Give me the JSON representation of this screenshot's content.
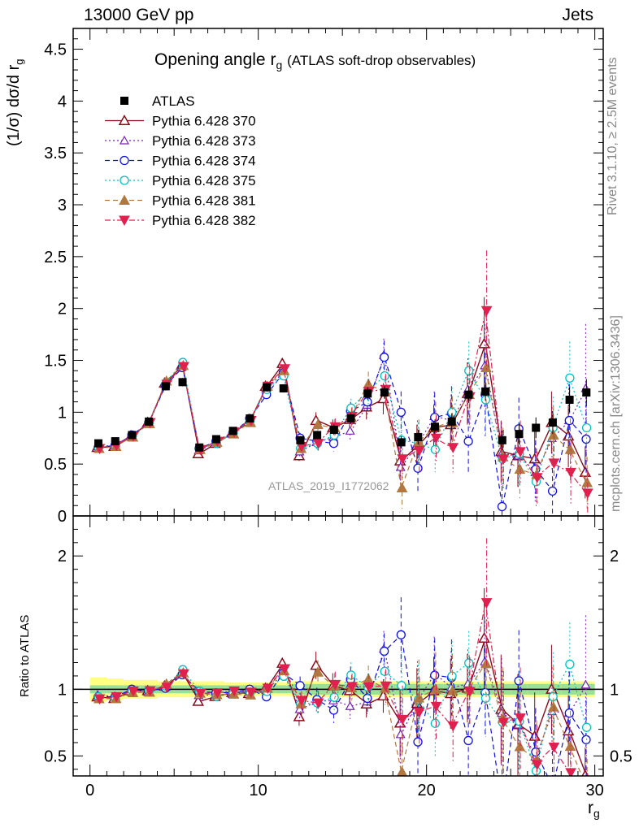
{
  "header": {
    "left": "13000 GeV pp",
    "right": "Jets"
  },
  "side_labels": {
    "rivet": "Rivet 3.1.10, ≥ 2.5M events",
    "mcplots": "mcplots.cern.ch [arXiv:1306.3436]"
  },
  "watermark": "ATLAS_2019_I1772062",
  "chart_data": [
    {
      "type": "scatter",
      "title": "Opening angle r",
      "title_subscript": "g",
      "title_note": "(ATLAS soft-drop observables)",
      "ylabel": "(1/σ) dσ/d r",
      "ylabel_subscript": "g",
      "xlabel": "r",
      "xlabel_subscript": "g",
      "xlim": [
        -1,
        30.5
      ],
      "ylim": [
        0,
        4.7
      ],
      "yticks": [
        "0",
        "0.5",
        "1",
        "1.5",
        "2",
        "2.5",
        "3",
        "3.5",
        "4",
        "4.5"
      ],
      "legend_position": "top-left",
      "x": [
        0.5,
        1.5,
        2.5,
        3.5,
        4.5,
        5.5,
        6.5,
        7.5,
        8.5,
        9.5,
        10.5,
        11.5,
        12.5,
        13.5,
        14.5,
        15.5,
        16.5,
        17.5,
        18.5,
        19.5,
        20.5,
        21.5,
        22.5,
        23.5,
        24.5,
        25.5,
        26.5,
        27.5,
        28.5,
        29.5
      ],
      "data": {
        "name": "ATLAS",
        "values": [
          0.7,
          0.72,
          0.78,
          0.91,
          1.25,
          1.29,
          0.66,
          0.74,
          0.82,
          0.94,
          1.24,
          1.23,
          0.73,
          0.78,
          0.83,
          0.94,
          1.18,
          1.19,
          0.71,
          0.76,
          0.86,
          0.91,
          1.17,
          1.2,
          0.73,
          0.79,
          0.85,
          0.9,
          1.12,
          1.19
        ],
        "errors": [
          0.03,
          0.03,
          0.03,
          0.03,
          0.04,
          0.04,
          0.03,
          0.03,
          0.03,
          0.03,
          0.04,
          0.04,
          0.04,
          0.04,
          0.05,
          0.05,
          0.06,
          0.06,
          0.06,
          0.07,
          0.07,
          0.08,
          0.08,
          0.09,
          0.09,
          0.1,
          0.1,
          0.11,
          0.12,
          0.13
        ]
      },
      "series": [
        {
          "name": "Pythia 6.428 370",
          "color": "#8b0a1a",
          "marker": "triangle-open",
          "dash": "solid",
          "values": [
            0.66,
            0.67,
            0.77,
            0.9,
            1.28,
            1.45,
            0.6,
            0.7,
            0.8,
            0.91,
            1.25,
            1.47,
            0.58,
            0.92,
            0.85,
            0.93,
            1.05,
            1.13,
            0.53,
            0.68,
            0.85,
            0.88,
            1.18,
            1.66,
            0.62,
            0.58,
            0.55,
            0.9,
            0.77,
            0.42
          ],
          "errors": [
            0.02,
            0.02,
            0.02,
            0.02,
            0.03,
            0.03,
            0.02,
            0.02,
            0.02,
            0.02,
            0.03,
            0.04,
            0.05,
            0.08,
            0.08,
            0.09,
            0.12,
            0.15,
            0.18,
            0.2,
            0.22,
            0.24,
            0.3,
            0.45,
            0.3,
            0.3,
            0.28,
            0.3,
            0.3,
            0.25
          ]
        },
        {
          "name": "Pythia 6.428 373",
          "color": "#7a1fb8",
          "marker": "triangle-open-small",
          "dash": "dotted",
          "values": [
            0.67,
            0.68,
            0.78,
            0.89,
            1.27,
            1.44,
            0.63,
            0.71,
            0.79,
            0.92,
            1.23,
            1.38,
            0.62,
            0.71,
            0.76,
            0.82,
            1.07,
            1.55,
            0.47,
            0.7,
            0.96,
            0.92,
            1.22,
            1.45,
            0.6,
            0.58,
            0.42,
            0.75,
            0.92,
            1.23
          ],
          "errors": [
            0.02,
            0.02,
            0.02,
            0.02,
            0.03,
            0.03,
            0.02,
            0.02,
            0.02,
            0.02,
            0.03,
            0.04,
            0.05,
            0.07,
            0.08,
            0.09,
            0.12,
            0.16,
            0.2,
            0.22,
            0.24,
            0.25,
            0.3,
            0.4,
            0.3,
            0.3,
            0.28,
            0.3,
            0.35,
            0.62
          ]
        },
        {
          "name": "Pythia 6.428 374",
          "color": "#1010e0",
          "marker": "circle-open",
          "dash": "dashed",
          "values": [
            0.66,
            0.68,
            0.78,
            0.9,
            1.26,
            1.43,
            0.65,
            0.72,
            0.8,
            0.94,
            1.17,
            1.38,
            0.75,
            0.72,
            0.7,
            1.01,
            1.1,
            1.53,
            1.0,
            0.46,
            0.95,
            0.99,
            0.72,
            1.17,
            0.09,
            0.84,
            0.45,
            0.24,
            0.92,
            0.74
          ],
          "errors": [
            0.02,
            0.02,
            0.02,
            0.02,
            0.03,
            0.03,
            0.02,
            0.02,
            0.02,
            0.02,
            0.03,
            0.04,
            0.05,
            0.07,
            0.08,
            0.09,
            0.12,
            0.16,
            0.2,
            0.22,
            0.24,
            0.26,
            0.3,
            0.4,
            0.2,
            0.3,
            0.28,
            0.3,
            0.35,
            0.35
          ]
        },
        {
          "name": "Pythia 6.428 375",
          "color": "#00c0c0",
          "marker": "circle-open-cyan",
          "dash": "dotted",
          "values": [
            0.66,
            0.67,
            0.77,
            0.9,
            1.28,
            1.48,
            0.65,
            0.7,
            0.8,
            0.92,
            1.22,
            1.35,
            0.65,
            0.7,
            0.78,
            1.04,
            1.2,
            1.35,
            0.73,
            0.7,
            0.64,
            1.0,
            1.4,
            1.12,
            0.55,
            0.6,
            0.33,
            0.85,
            1.33,
            0.85
          ],
          "errors": [
            0.02,
            0.02,
            0.02,
            0.02,
            0.03,
            0.03,
            0.02,
            0.02,
            0.02,
            0.02,
            0.03,
            0.04,
            0.05,
            0.07,
            0.08,
            0.09,
            0.12,
            0.15,
            0.18,
            0.2,
            0.22,
            0.24,
            0.28,
            0.35,
            0.28,
            0.3,
            0.25,
            0.3,
            0.35,
            0.3
          ]
        },
        {
          "name": "Pythia 6.428 381",
          "color": "#b07840",
          "marker": "triangle-filled",
          "dash": "dashed",
          "values": [
            0.65,
            0.67,
            0.76,
            0.89,
            1.3,
            1.45,
            0.64,
            0.71,
            0.79,
            0.9,
            1.25,
            1.4,
            0.65,
            0.88,
            0.85,
            0.95,
            1.27,
            1.2,
            0.27,
            0.71,
            0.86,
            0.9,
            1.17,
            1.43,
            0.57,
            0.45,
            0.4,
            0.78,
            0.64,
            0.32
          ],
          "errors": [
            0.02,
            0.02,
            0.02,
            0.02,
            0.03,
            0.03,
            0.02,
            0.02,
            0.02,
            0.02,
            0.03,
            0.04,
            0.05,
            0.07,
            0.08,
            0.09,
            0.12,
            0.15,
            0.2,
            0.22,
            0.24,
            0.25,
            0.3,
            0.4,
            0.28,
            0.28,
            0.25,
            0.28,
            0.3,
            0.25
          ]
        },
        {
          "name": "Pythia 6.428 382",
          "color": "#e0204f",
          "marker": "triangle-down-filled",
          "dash": "dashdot",
          "values": [
            0.65,
            0.68,
            0.77,
            0.9,
            1.27,
            1.44,
            0.64,
            0.72,
            0.81,
            0.92,
            1.25,
            1.42,
            0.67,
            0.7,
            0.86,
            0.96,
            1.2,
            1.22,
            0.55,
            0.63,
            0.75,
            0.66,
            1.15,
            1.98,
            0.55,
            0.62,
            0.37,
            0.51,
            0.42,
            0.22
          ],
          "errors": [
            0.02,
            0.02,
            0.02,
            0.02,
            0.03,
            0.03,
            0.02,
            0.02,
            0.02,
            0.02,
            0.03,
            0.04,
            0.05,
            0.07,
            0.08,
            0.09,
            0.12,
            0.15,
            0.18,
            0.2,
            0.22,
            0.24,
            0.3,
            0.58,
            0.28,
            0.3,
            0.25,
            0.28,
            0.3,
            0.22
          ]
        }
      ]
    },
    {
      "type": "scatter",
      "title": "",
      "ylabel": "Ratio to ATLAS",
      "xlabel": "r",
      "xlabel_subscript": "g",
      "xlim": [
        -1,
        30.5
      ],
      "xticks": [
        "0",
        "10",
        "20",
        "30"
      ],
      "ylim": [
        0.35,
        2.3
      ],
      "yticks": [
        "0.5",
        "1",
        "2"
      ],
      "band_inner_color": "#99e099",
      "band_outer_color": "#ffff80",
      "band_inner": [
        0.03,
        0.03,
        0.03,
        0.03,
        0.03,
        0.03,
        0.03,
        0.03,
        0.03,
        0.03,
        0.03,
        0.03,
        0.04,
        0.04,
        0.04,
        0.04,
        0.04,
        0.04,
        0.04,
        0.04,
        0.04,
        0.04,
        0.04,
        0.04,
        0.04,
        0.04,
        0.04,
        0.04,
        0.04,
        0.04
      ],
      "band_outer": [
        0.09,
        0.08,
        0.07,
        0.07,
        0.06,
        0.06,
        0.06,
        0.06,
        0.05,
        0.05,
        0.05,
        0.05,
        0.06,
        0.06,
        0.06,
        0.06,
        0.06,
        0.06,
        0.06,
        0.06,
        0.06,
        0.06,
        0.06,
        0.06,
        0.06,
        0.06,
        0.06,
        0.06,
        0.06,
        0.06
      ]
    }
  ]
}
